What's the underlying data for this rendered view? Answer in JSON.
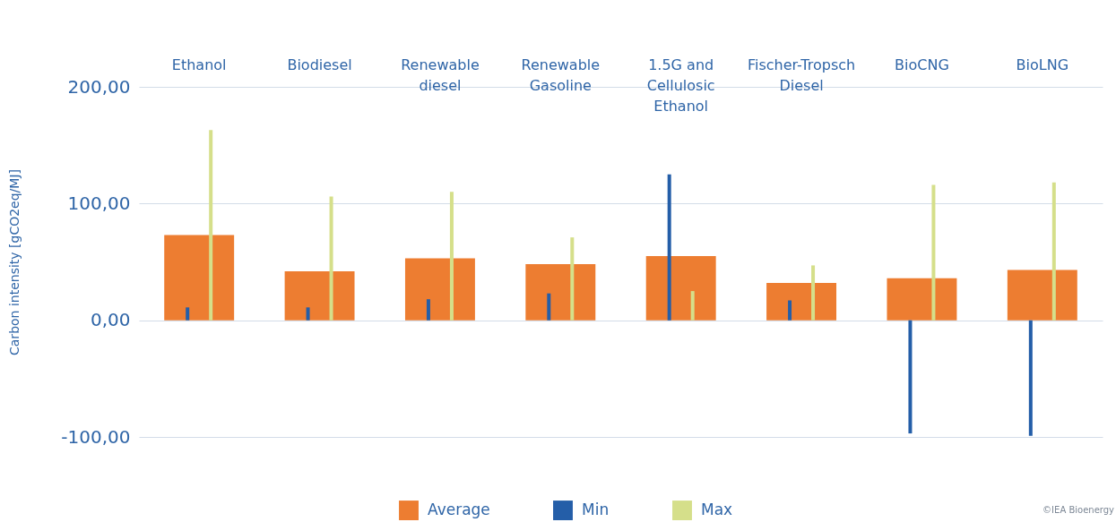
{
  "chart_data": {
    "type": "bar",
    "ylabel": "Carbon intensity [gCO2eq/MJ]",
    "categories": [
      "Ethanol",
      "Biodiesel",
      "Renewable diesel",
      "Renewable Gasoline",
      "1.5G and Cellulosic Ethanol",
      "Fischer-Tropsch Diesel",
      "BioCNG",
      "BioLNG"
    ],
    "series": [
      {
        "name": "Average",
        "color": "#ed7d31",
        "values": [
          73,
          42,
          53,
          48,
          55,
          32,
          36,
          43
        ]
      },
      {
        "name": "Min",
        "color": "#245ea8",
        "values": [
          11,
          11,
          18,
          23,
          125,
          17,
          -97,
          -99
        ]
      },
      {
        "name": "Max",
        "color": "#d5df8a",
        "values": [
          163,
          106,
          110,
          71,
          25,
          47,
          116,
          118
        ]
      }
    ],
    "ylim": [
      -100,
      200
    ],
    "yticks": [
      {
        "value": -100,
        "label": "-100,00"
      },
      {
        "value": 0,
        "label": "0,00"
      },
      {
        "value": 100,
        "label": "100,00"
      },
      {
        "value": 200,
        "label": "200,00"
      }
    ],
    "grid": "y",
    "legend": "bottom",
    "annotations": [
      "©IEA Bioenergy"
    ]
  }
}
